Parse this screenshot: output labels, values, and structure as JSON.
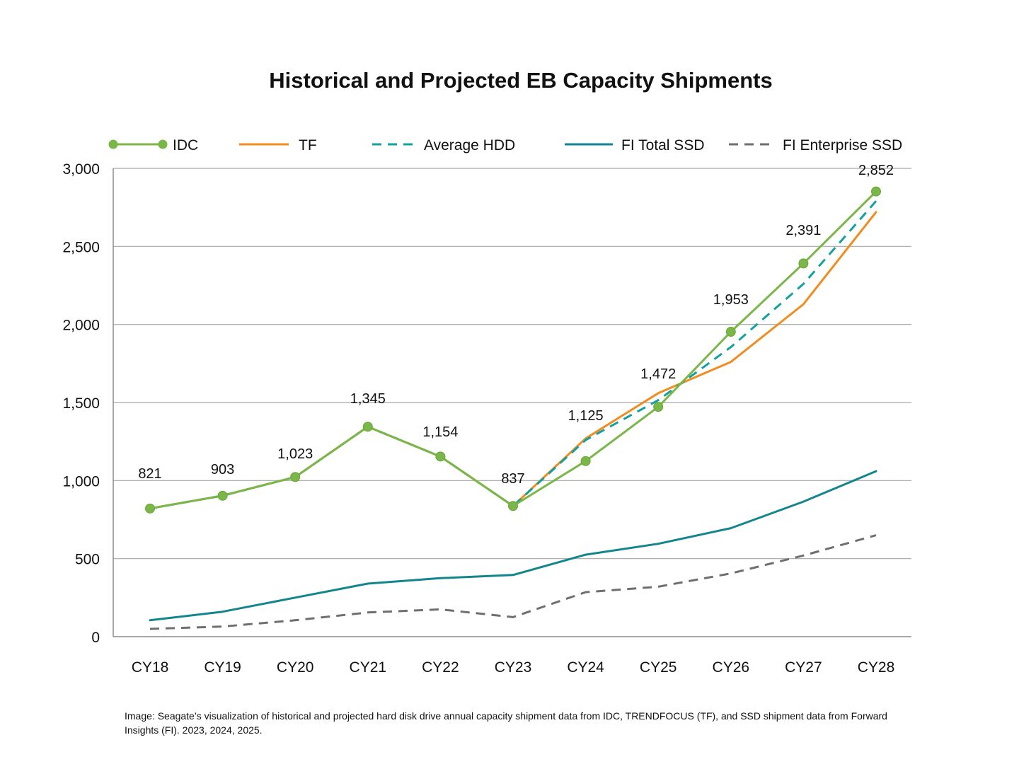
{
  "chart_data": {
    "type": "line",
    "title": "Historical and Projected EB Capacity Shipments",
    "xlabel": "",
    "ylabel": "",
    "ylim": [
      0,
      3000
    ],
    "yticks": [
      0,
      500,
      1000,
      1500,
      2000,
      2500,
      3000
    ],
    "ytick_labels": [
      "0",
      "500",
      "1,000",
      "1,500",
      "2,000",
      "2,500",
      "3,000"
    ],
    "categories": [
      "CY18",
      "CY19",
      "CY20",
      "CY21",
      "CY22",
      "CY23",
      "CY24",
      "CY25",
      "CY26",
      "CY27",
      "CY28"
    ],
    "legend_position": "top",
    "grid": "horizontal",
    "series": [
      {
        "name": "IDC",
        "color": "#7ab648",
        "style": "solid-markers",
        "values": [
          821,
          903,
          1023,
          1345,
          1154,
          837,
          1125,
          1472,
          1953,
          2391,
          2852
        ],
        "data_labels": [
          "821",
          "903",
          "1,023",
          "1,345",
          "1,154",
          "837",
          "1,125",
          "1,472",
          "1,953",
          "2,391",
          "2,852"
        ]
      },
      {
        "name": "TF",
        "color": "#f28c1e",
        "style": "solid",
        "values": [
          821,
          903,
          1023,
          1345,
          1154,
          837,
          1270,
          1560,
          1760,
          2130,
          2720
        ]
      },
      {
        "name": "Average HDD",
        "color": "#13a0a0",
        "style": "dashed",
        "values": [
          821,
          903,
          1023,
          1345,
          1154,
          837,
          1260,
          1515,
          1855,
          2260,
          2790
        ]
      },
      {
        "name": "FI Total SSD",
        "color": "#13858c",
        "style": "solid",
        "values": [
          105,
          160,
          250,
          340,
          375,
          395,
          525,
          595,
          695,
          865,
          1060
        ]
      },
      {
        "name": "FI Enterprise SSD",
        "color": "#6f6f6f",
        "style": "dashed",
        "values": [
          50,
          65,
          105,
          155,
          175,
          125,
          285,
          320,
          405,
          520,
          650
        ]
      }
    ]
  },
  "caption": "Image: Seagate’s visualization of historical and projected hard disk drive annual capacity shipment data from IDC, TRENDFOCUS (TF), and SSD shipment data from Forward Insights (FI). 2023, 2024, 2025."
}
